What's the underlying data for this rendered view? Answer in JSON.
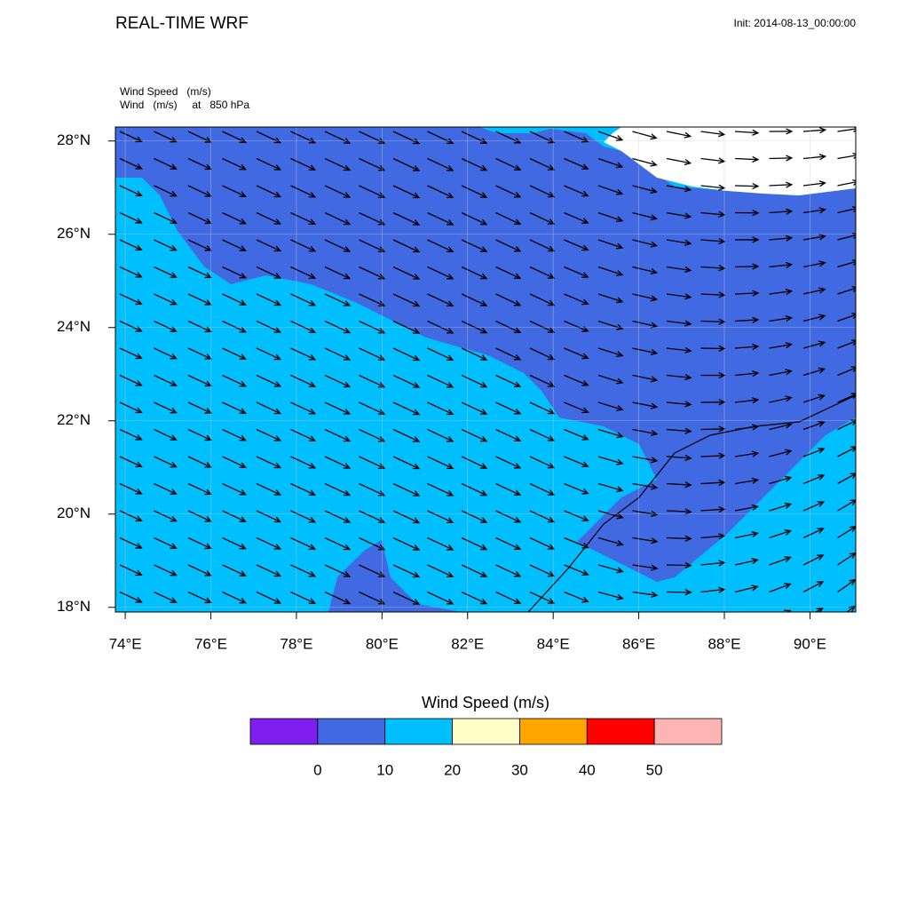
{
  "header": {
    "title": "REAL-TIME WRF",
    "init": "Init: 2014-08-13_00:00:00",
    "field_lines": [
      "Wind Speed   (m/s)",
      "Wind   (m/s)     at   850 hPa"
    ]
  },
  "map": {
    "lonlim": [
      73.77,
      91.07
    ],
    "latlim": [
      17.9,
      28.3
    ],
    "lon_ticks": [
      {
        "value": 74,
        "label": "74°E"
      },
      {
        "value": 76,
        "label": "76°E"
      },
      {
        "value": 78,
        "label": "78°E"
      },
      {
        "value": 80,
        "label": "80°E"
      },
      {
        "value": 82,
        "label": "82°E"
      },
      {
        "value": 84,
        "label": "84°E"
      },
      {
        "value": 86,
        "label": "86°E"
      },
      {
        "value": 88,
        "label": "88°E"
      },
      {
        "value": 90,
        "label": "90°E"
      }
    ],
    "lat_ticks": [
      {
        "value": 18,
        "label": "18°N"
      },
      {
        "value": 20,
        "label": "20°N"
      },
      {
        "value": 22,
        "label": "22°N"
      },
      {
        "value": 24,
        "label": "24°N"
      },
      {
        "value": 26,
        "label": "26°N"
      },
      {
        "value": 28,
        "label": "28°N"
      }
    ]
  },
  "colorbar": {
    "title": "Wind Speed  (m/s)",
    "colors": [
      "#7f1fef",
      "#4169e1",
      "#00bfff",
      "#ffffc8",
      "#ffa500",
      "#ff0000",
      "#ffb4b4"
    ],
    "labels": [
      0,
      10,
      20,
      30,
      40,
      50
    ]
  }
}
